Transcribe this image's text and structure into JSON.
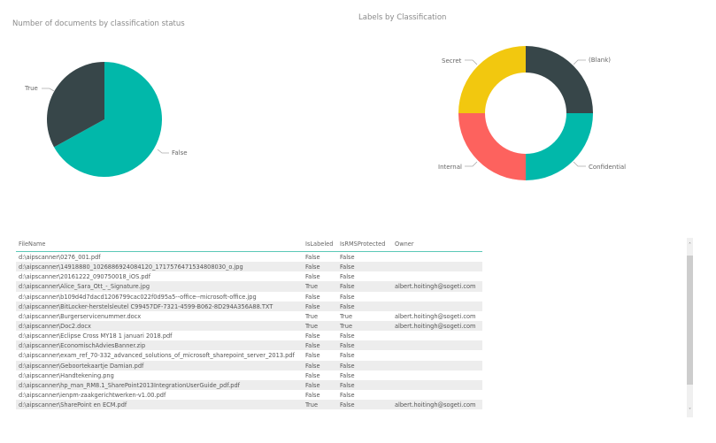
{
  "pie_chart": {
    "title": "Number of documents by classification status",
    "labels": {
      "true": "True",
      "false": "False"
    }
  },
  "donut_chart": {
    "title": "Labels by Classification",
    "labels": {
      "blank": "(Blank)",
      "confidential": "Confidential",
      "internal": "Internal",
      "secret": "Secret"
    }
  },
  "colors": {
    "teal": "#01b8aa",
    "dark": "#374649",
    "red": "#fd625e",
    "yellow": "#f2c80f",
    "header_underline": "#5bc8b8"
  },
  "chart_data": [
    {
      "type": "pie",
      "title": "Number of documents by classification status",
      "categories": [
        "True",
        "False"
      ],
      "values": [
        33,
        67
      ],
      "colors": [
        "#374649",
        "#01b8aa"
      ],
      "legend": "data labels outside slices"
    },
    {
      "type": "pie",
      "subtype": "donut",
      "title": "Labels by Classification",
      "categories": [
        "(Blank)",
        "Confidential",
        "Internal",
        "Secret"
      ],
      "values": [
        25,
        25,
        25,
        25
      ],
      "colors": [
        "#374649",
        "#01b8aa",
        "#fd625e",
        "#f2c80f"
      ],
      "legend": "data labels outside slices"
    },
    {
      "type": "table",
      "columns": [
        "FileName",
        "IsLabeled",
        "IsRMSProtected",
        "Owner"
      ]
    }
  ],
  "table": {
    "headers": {
      "file": "FileName",
      "labeled": "IsLabeled",
      "rms": "IsRMSProtected",
      "owner": "Owner"
    },
    "rows": [
      {
        "file": "d:\\aipscanner\\0276_001.pdf",
        "labeled": "False",
        "rms": "False",
        "owner": ""
      },
      {
        "file": "d:\\aipscanner\\14918880_1026886924084120_1717576471534808030_o.jpg",
        "labeled": "False",
        "rms": "False",
        "owner": ""
      },
      {
        "file": "d:\\aipscanner\\20161222_090750018_iOS.pdf",
        "labeled": "False",
        "rms": "False",
        "owner": ""
      },
      {
        "file": "d:\\aipscanner\\Alice_Sara_Ott_-_Signature.jpg",
        "labeled": "True",
        "rms": "False",
        "owner": "albert.hoitingh@sogeti.com"
      },
      {
        "file": "d:\\aipscanner\\b109d4d7dacd1206799cac022f0d95a5--office--microsoft-office.jpg",
        "labeled": "False",
        "rms": "False",
        "owner": ""
      },
      {
        "file": "d:\\aipscanner\\BitLocker-herstelsleutel C99457DF-7321-4599-B062-8D294A356A88.TXT",
        "labeled": "False",
        "rms": "False",
        "owner": ""
      },
      {
        "file": "d:\\aipscanner\\Burgerservicenummer.docx",
        "labeled": "True",
        "rms": "True",
        "owner": "albert.hoitingh@sogeti.com"
      },
      {
        "file": "d:\\aipscanner\\Doc2.docx",
        "labeled": "True",
        "rms": "True",
        "owner": "albert.hoitingh@sogeti.com"
      },
      {
        "file": "d:\\aipscanner\\Eclipse Cross MY18 1 januari 2018.pdf",
        "labeled": "False",
        "rms": "False",
        "owner": ""
      },
      {
        "file": "d:\\aipscanner\\EconomischAdviesBanner.zip",
        "labeled": "False",
        "rms": "False",
        "owner": ""
      },
      {
        "file": "d:\\aipscanner\\exam_ref_70-332_advanced_solutions_of_microsoft_sharepoint_server_2013.pdf",
        "labeled": "False",
        "rms": "False",
        "owner": ""
      },
      {
        "file": "d:\\aipscanner\\Geboortekaartje Damian.pdf",
        "labeled": "False",
        "rms": "False",
        "owner": ""
      },
      {
        "file": "d:\\aipscanner\\Handtekening.png",
        "labeled": "False",
        "rms": "False",
        "owner": ""
      },
      {
        "file": "d:\\aipscanner\\hp_man_RM8.1_SharePoint2013IntegrationUserGuide_pdf.pdf",
        "labeled": "False",
        "rms": "False",
        "owner": ""
      },
      {
        "file": "d:\\aipscanner\\ienpm-zaakgerichtwerken-v1.00.pdf",
        "labeled": "False",
        "rms": "False",
        "owner": ""
      },
      {
        "file": "d:\\aipscanner\\SharePoint en ECM.pdf",
        "labeled": "True",
        "rms": "False",
        "owner": "albert.hoitingh@sogeti.com"
      }
    ]
  },
  "scrollbar": {
    "up_icon": "˄",
    "down_icon": "˅"
  }
}
